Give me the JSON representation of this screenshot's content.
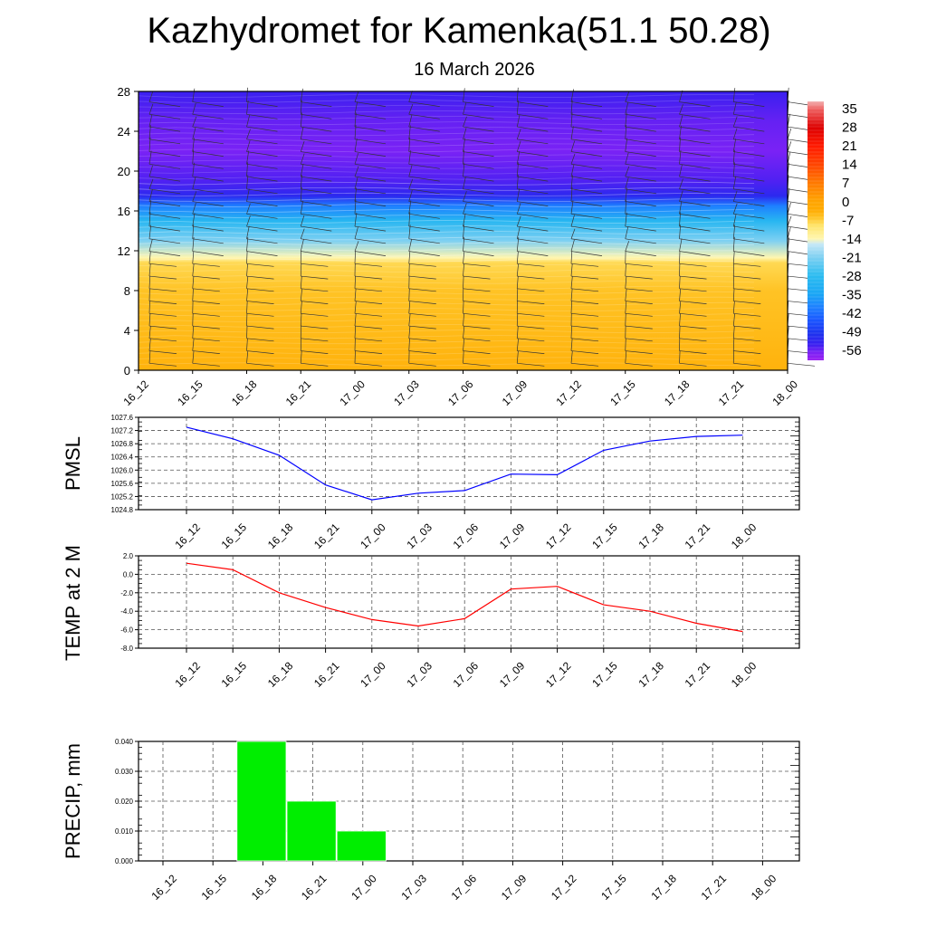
{
  "chart_data": [
    {
      "type": "heatmap",
      "title": "Kazhydromet for Kamenka(51.1 50.28)",
      "subtitle": "16 March 2026",
      "x_labels": [
        "16_12",
        "16_15",
        "16_18",
        "16_21",
        "17_00",
        "17_03",
        "17_06",
        "17_09",
        "17_12",
        "17_15",
        "17_18",
        "17_21",
        "18_00"
      ],
      "y_ticks": [
        "0",
        "4",
        "8",
        "12",
        "16",
        "20",
        "24",
        "28"
      ],
      "ylim": [
        0,
        28
      ],
      "colorbar": {
        "labels": [
          "35",
          "28",
          "21",
          "14",
          "7",
          "0",
          "-7",
          "-14",
          "-21",
          "-28",
          "-35",
          "-42",
          "-49",
          "-56"
        ],
        "range": [
          -60,
          38
        ]
      },
      "temperature_profile": [
        {
          "h": 0,
          "v": -4
        },
        {
          "h": 4,
          "v": -5
        },
        {
          "h": 8,
          "v": -6
        },
        {
          "h": 10.8,
          "v": -8
        },
        {
          "h": 11.3,
          "v": -14
        },
        {
          "h": 13,
          "v": -21
        },
        {
          "h": 15,
          "v": -30
        },
        {
          "h": 16.5,
          "v": -40
        },
        {
          "h": 17.5,
          "v": -52
        },
        {
          "h": 19,
          "v": -55
        },
        {
          "h": 22,
          "v": -57
        },
        {
          "h": 25,
          "v": -56
        },
        {
          "h": 28,
          "v": -54
        }
      ]
    },
    {
      "type": "line",
      "ylabel": "PMSL",
      "x_labels": [
        "16_12",
        "16_15",
        "16_18",
        "16_21",
        "17_00",
        "17_03",
        "17_06",
        "17_09",
        "17_12",
        "17_15",
        "17_18",
        "17_21",
        "18_00"
      ],
      "values": [
        1027.3,
        1026.95,
        1026.45,
        1025.55,
        1025.1,
        1025.3,
        1025.38,
        1025.88,
        1025.86,
        1026.6,
        1026.88,
        1027.02,
        1027.06
      ],
      "y_ticks": [
        "1027.6",
        "1027.2",
        "1026.8",
        "1026.4",
        "1026.0",
        "1025.6",
        "1025.2",
        "1024.8"
      ],
      "ylim": [
        1024.8,
        1027.6
      ],
      "color": "#0000ff"
    },
    {
      "type": "line",
      "ylabel": "TEMP at 2 M",
      "x_labels": [
        "16_12",
        "16_15",
        "16_18",
        "16_21",
        "17_00",
        "17_03",
        "17_06",
        "17_09",
        "17_12",
        "17_15",
        "17_18",
        "17_21",
        "18_00"
      ],
      "values": [
        1.2,
        0.5,
        -2.0,
        -3.6,
        -4.9,
        -5.6,
        -4.8,
        -1.6,
        -1.3,
        -3.3,
        -4.0,
        -5.3,
        -6.2
      ],
      "y_ticks": [
        "2.0",
        "0.0",
        "-2.0",
        "-4.0",
        "-6.0",
        "-8.0"
      ],
      "ylim": [
        -8.0,
        2.0
      ],
      "color": "#ff0000"
    },
    {
      "type": "bar",
      "ylabel": "PRECIP, mm",
      "x_labels": [
        "16_12",
        "16_15",
        "16_18",
        "16_21",
        "17_00",
        "17_03",
        "17_06",
        "17_09",
        "17_12",
        "17_15",
        "17_18",
        "17_21",
        "18_00"
      ],
      "values": [
        0,
        0,
        0.04,
        0.02,
        0.01,
        0,
        0,
        0,
        0,
        0,
        0,
        0,
        0
      ],
      "y_ticks": [
        "0.040",
        "0.030",
        "0.020",
        "0.010",
        "0.000"
      ],
      "ylim": [
        0,
        0.04
      ],
      "color": "#00ee00"
    }
  ]
}
